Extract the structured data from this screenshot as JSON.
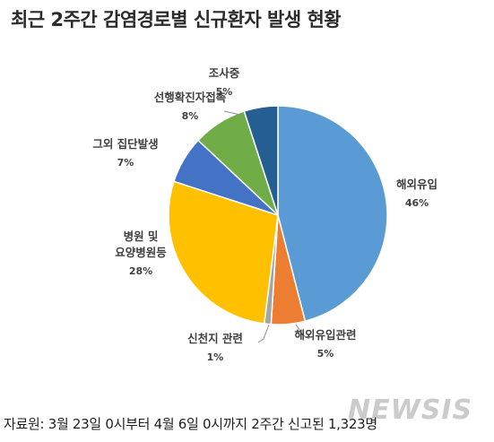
{
  "chart_data": {
    "type": "pie",
    "title": "최근 2주간 감염경로별 신규환자 발생 현황",
    "slices": [
      {
        "label": "해외유입",
        "label_lines": [
          "해외유입"
        ],
        "pct_label": "46%",
        "value": 46,
        "color": "#5b9bd5"
      },
      {
        "label": "해외유입관련",
        "label_lines": [
          "해외유입관련"
        ],
        "pct_label": "5%",
        "value": 5,
        "color": "#ed7d31"
      },
      {
        "label": "신천지 관련",
        "label_lines": [
          "신천지 관련"
        ],
        "pct_label": "1%",
        "value": 1,
        "color": "#a5a5a5"
      },
      {
        "label": "병원 및 요양병원등",
        "label_lines": [
          "병원 및",
          "요양병원등"
        ],
        "pct_label": "28%",
        "value": 28,
        "color": "#ffc000"
      },
      {
        "label": "그외 집단발생",
        "label_lines": [
          "그외 집단발생"
        ],
        "pct_label": "7%",
        "value": 7,
        "color": "#4472c4"
      },
      {
        "label": "선행확진자접촉",
        "label_lines": [
          "선행확진자접촉"
        ],
        "pct_label": "8%",
        "value": 8,
        "color": "#70ad47"
      },
      {
        "label": "조사중",
        "label_lines": [
          "조사중"
        ],
        "pct_label": "5%",
        "value": 5,
        "color": "#255e91"
      }
    ],
    "legend": "none"
  },
  "source_note": "자료원: 3월 23일 0시부터 4월 6일 0시까지 2주간 신고된 1,323명",
  "watermark": "NEWSIS"
}
